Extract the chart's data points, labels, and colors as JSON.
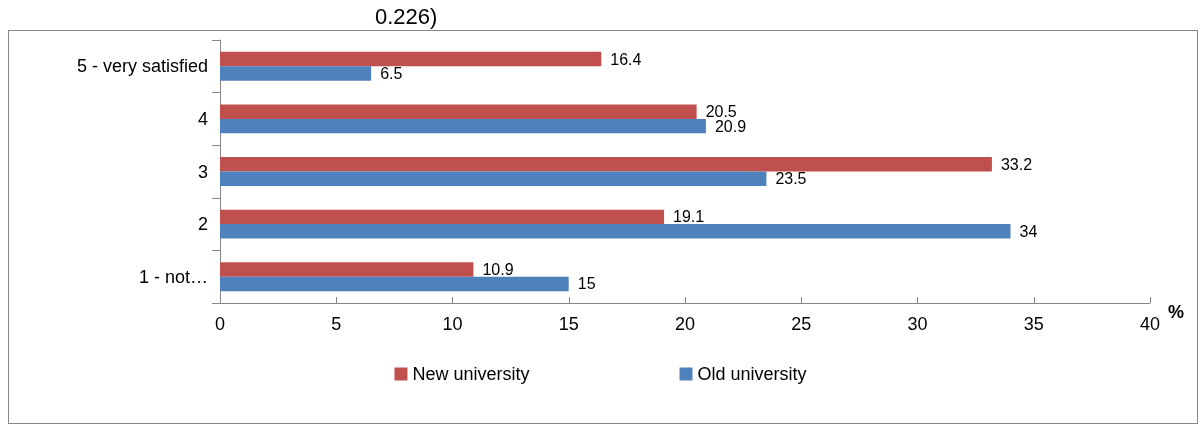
{
  "chart_data": {
    "type": "bar",
    "orientation": "horizontal",
    "title": "0.226)",
    "xlabel": "%",
    "categories": [
      "5 - very satisfied",
      "4",
      "3",
      "2",
      "1 - not…"
    ],
    "series": [
      {
        "name": "New university",
        "color": "#c0504d",
        "values": [
          16.4,
          20.5,
          33.2,
          19.1,
          10.9
        ]
      },
      {
        "name": "Old university",
        "color": "#4f81bd",
        "values": [
          6.5,
          20.9,
          23.5,
          34,
          15
        ]
      }
    ],
    "xlim": [
      0,
      40
    ],
    "xticks": [
      0,
      5,
      10,
      15,
      20,
      25,
      30,
      35,
      40
    ],
    "grid": false,
    "legend": "bottom",
    "data_labels": true
  }
}
